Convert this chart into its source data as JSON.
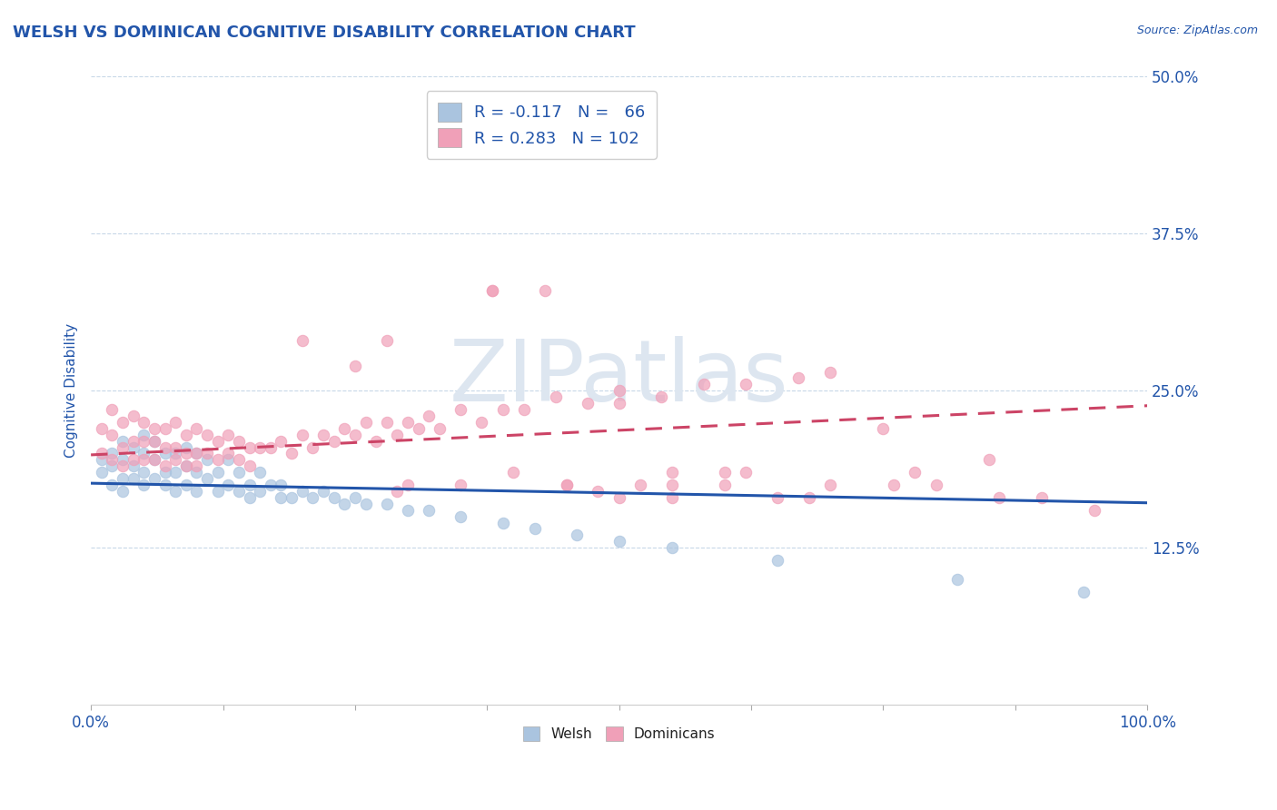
{
  "title": "WELSH VS DOMINICAN COGNITIVE DISABILITY CORRELATION CHART",
  "source": "Source: ZipAtlas.com",
  "ylabel": "Cognitive Disability",
  "xlim": [
    0,
    1.0
  ],
  "ylim": [
    0.0,
    0.5
  ],
  "yticks": [
    0.125,
    0.25,
    0.375,
    0.5
  ],
  "ytick_labels": [
    "12.5%",
    "25.0%",
    "37.5%",
    "50.0%"
  ],
  "xtick_show": [
    0.0,
    1.0
  ],
  "xtick_labels_show": [
    "0.0%",
    "100.0%"
  ],
  "welsh_R": -0.117,
  "welsh_N": 66,
  "dominican_R": 0.283,
  "dominican_N": 102,
  "welsh_color": "#aac4df",
  "dominican_color": "#f0a0b8",
  "welsh_line_color": "#2255aa",
  "dominican_line_color": "#cc4466",
  "background_color": "#ffffff",
  "title_color": "#2255aa",
  "axis_label_color": "#2255aa",
  "tick_color": "#2255aa",
  "grid_color": "#c8d8e8",
  "watermark_text": "ZIPatlas",
  "watermark_color": "#dde6f0",
  "legend_r_color": "#cc2244",
  "legend_n_color": "#2255aa",
  "welsh_x": [
    0.01,
    0.01,
    0.02,
    0.02,
    0.02,
    0.03,
    0.03,
    0.03,
    0.03,
    0.04,
    0.04,
    0.04,
    0.05,
    0.05,
    0.05,
    0.05,
    0.06,
    0.06,
    0.06,
    0.07,
    0.07,
    0.07,
    0.08,
    0.08,
    0.08,
    0.09,
    0.09,
    0.09,
    0.1,
    0.1,
    0.1,
    0.11,
    0.11,
    0.12,
    0.12,
    0.13,
    0.13,
    0.14,
    0.14,
    0.15,
    0.15,
    0.16,
    0.16,
    0.17,
    0.18,
    0.18,
    0.19,
    0.2,
    0.21,
    0.22,
    0.23,
    0.24,
    0.25,
    0.26,
    0.28,
    0.3,
    0.32,
    0.35,
    0.39,
    0.42,
    0.46,
    0.5,
    0.55,
    0.65,
    0.82,
    0.94
  ],
  "welsh_y": [
    0.195,
    0.185,
    0.2,
    0.19,
    0.175,
    0.21,
    0.195,
    0.18,
    0.17,
    0.205,
    0.19,
    0.18,
    0.215,
    0.2,
    0.185,
    0.175,
    0.21,
    0.195,
    0.18,
    0.2,
    0.185,
    0.175,
    0.2,
    0.185,
    0.17,
    0.205,
    0.19,
    0.175,
    0.2,
    0.185,
    0.17,
    0.195,
    0.18,
    0.185,
    0.17,
    0.195,
    0.175,
    0.185,
    0.17,
    0.175,
    0.165,
    0.185,
    0.17,
    0.175,
    0.165,
    0.175,
    0.165,
    0.17,
    0.165,
    0.17,
    0.165,
    0.16,
    0.165,
    0.16,
    0.16,
    0.155,
    0.155,
    0.15,
    0.145,
    0.14,
    0.135,
    0.13,
    0.125,
    0.115,
    0.1,
    0.09
  ],
  "dominican_x": [
    0.01,
    0.01,
    0.02,
    0.02,
    0.02,
    0.03,
    0.03,
    0.03,
    0.04,
    0.04,
    0.04,
    0.05,
    0.05,
    0.05,
    0.06,
    0.06,
    0.06,
    0.07,
    0.07,
    0.07,
    0.08,
    0.08,
    0.08,
    0.09,
    0.09,
    0.09,
    0.1,
    0.1,
    0.1,
    0.11,
    0.11,
    0.12,
    0.12,
    0.13,
    0.13,
    0.14,
    0.14,
    0.15,
    0.15,
    0.16,
    0.17,
    0.18,
    0.19,
    0.2,
    0.21,
    0.22,
    0.23,
    0.24,
    0.25,
    0.26,
    0.27,
    0.28,
    0.29,
    0.3,
    0.31,
    0.32,
    0.33,
    0.35,
    0.37,
    0.39,
    0.41,
    0.44,
    0.47,
    0.5,
    0.54,
    0.58,
    0.62,
    0.67,
    0.7,
    0.28,
    0.3,
    0.35,
    0.4,
    0.45,
    0.5,
    0.55,
    0.6,
    0.38,
    0.29,
    0.43,
    0.48,
    0.55,
    0.62,
    0.7,
    0.78,
    0.86,
    0.38,
    0.45,
    0.52,
    0.6,
    0.68,
    0.76,
    0.25,
    0.5,
    0.75,
    0.85,
    0.2,
    0.55,
    0.65,
    0.8,
    0.9,
    0.95
  ],
  "dominican_y": [
    0.22,
    0.2,
    0.235,
    0.215,
    0.195,
    0.225,
    0.205,
    0.19,
    0.23,
    0.21,
    0.195,
    0.225,
    0.21,
    0.195,
    0.22,
    0.21,
    0.195,
    0.22,
    0.205,
    0.19,
    0.225,
    0.205,
    0.195,
    0.215,
    0.2,
    0.19,
    0.22,
    0.2,
    0.19,
    0.215,
    0.2,
    0.21,
    0.195,
    0.215,
    0.2,
    0.21,
    0.195,
    0.205,
    0.19,
    0.205,
    0.205,
    0.21,
    0.2,
    0.215,
    0.205,
    0.215,
    0.21,
    0.22,
    0.215,
    0.225,
    0.21,
    0.225,
    0.215,
    0.225,
    0.22,
    0.23,
    0.22,
    0.235,
    0.225,
    0.235,
    0.235,
    0.245,
    0.24,
    0.25,
    0.245,
    0.255,
    0.255,
    0.26,
    0.265,
    0.29,
    0.175,
    0.175,
    0.185,
    0.175,
    0.165,
    0.185,
    0.175,
    0.33,
    0.17,
    0.33,
    0.17,
    0.175,
    0.185,
    0.175,
    0.185,
    0.165,
    0.33,
    0.175,
    0.175,
    0.185,
    0.165,
    0.175,
    0.27,
    0.24,
    0.22,
    0.195,
    0.29,
    0.165,
    0.165,
    0.175,
    0.165,
    0.155
  ]
}
